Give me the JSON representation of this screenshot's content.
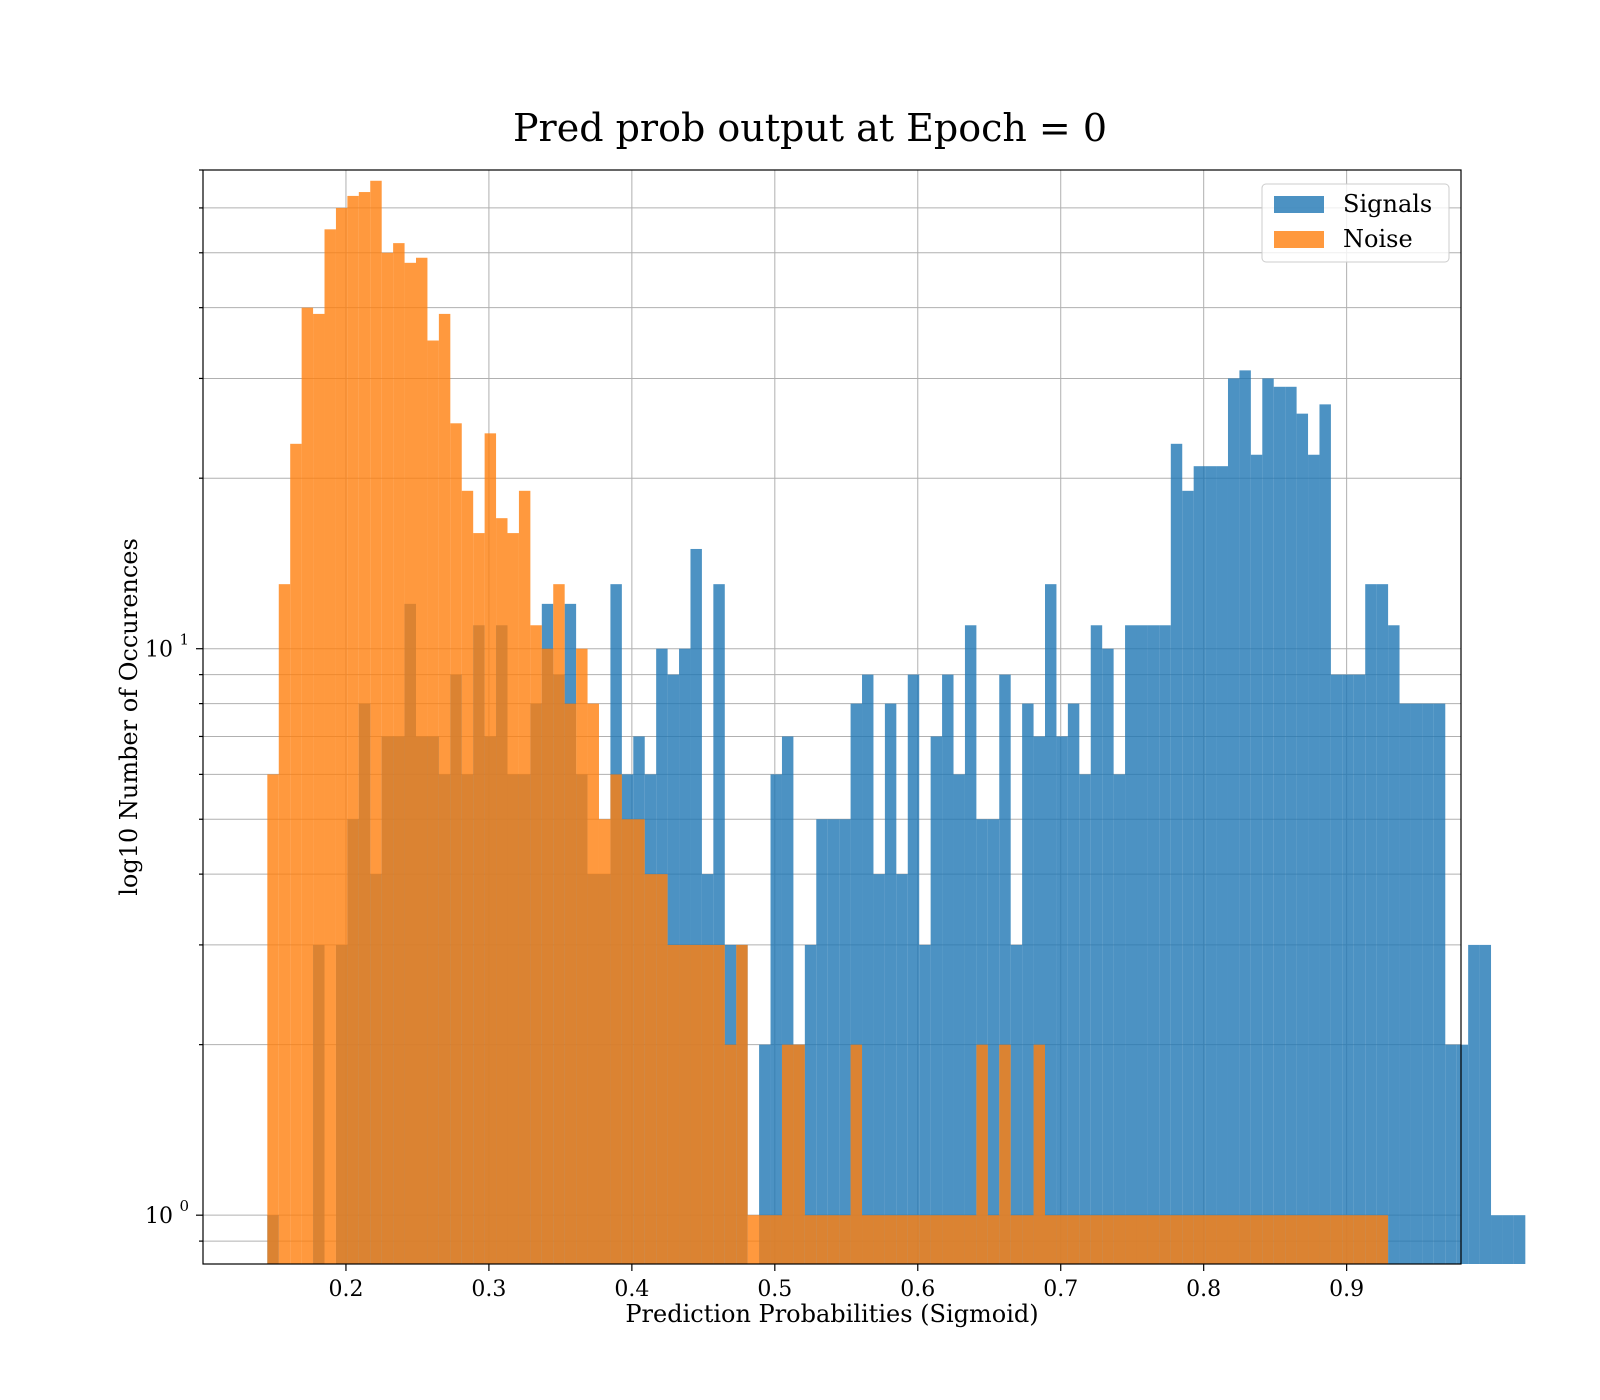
{
  "chart_data": {
    "type": "histogram",
    "title": "Pred prob output at Epoch = 0",
    "xlabel": "Prediction Probabilities (Sigmoid)",
    "ylabel": "log10 Number of Occurences",
    "yscale": "log",
    "xlim": [
      0.1,
      0.98
    ],
    "ylim": [
      0.82,
      70
    ],
    "xticks": [
      0.2,
      0.3,
      0.4,
      0.5,
      0.6,
      0.7,
      0.8,
      0.9
    ],
    "xtick_labels": [
      "0.2",
      "0.3",
      "0.4",
      "0.5",
      "0.6",
      "0.7",
      "0.8",
      "0.9"
    ],
    "yticks_major": [
      1,
      10
    ],
    "ytick_labels": [
      {
        "base": "10",
        "exp": "0"
      },
      {
        "base": "10",
        "exp": "1"
      }
    ],
    "grid": true,
    "legend_position": "top-right",
    "series": [
      {
        "name": "Signals",
        "color": "#1f77b4",
        "alpha": 0.8,
        "bin_start": 0.145,
        "bin_width": 0.008,
        "counts": [
          1,
          0,
          0,
          0,
          3,
          0,
          3,
          5,
          8,
          4,
          7,
          7,
          12,
          7,
          7,
          6,
          9,
          6,
          11,
          7,
          11,
          6,
          6,
          8,
          12,
          9,
          12,
          6,
          4,
          4,
          13,
          6,
          7,
          6,
          10,
          9,
          10,
          15,
          4,
          13,
          3,
          3,
          0,
          2,
          6,
          7,
          2,
          3,
          5,
          5,
          5,
          8,
          9,
          4,
          8,
          4,
          9,
          3,
          7,
          9,
          6,
          11,
          5,
          5,
          9,
          3,
          8,
          7,
          13,
          7,
          8,
          6,
          11,
          10,
          6,
          11,
          11,
          11,
          11,
          23,
          19,
          21,
          21,
          21,
          30,
          31,
          22,
          30,
          29,
          29,
          26,
          22,
          27,
          9,
          9,
          9,
          13,
          13,
          11,
          8,
          8,
          8,
          8,
          2,
          2,
          3,
          3,
          1,
          1,
          1
        ]
      },
      {
        "name": "Noise",
        "color": "#ff7f0e",
        "alpha": 0.8,
        "bin_start": 0.145,
        "bin_width": 0.008,
        "counts": [
          6,
          13,
          23,
          40,
          39,
          55,
          60,
          63,
          64,
          67,
          50,
          52,
          48,
          49,
          35,
          39,
          25,
          19,
          16,
          24,
          17,
          16,
          19,
          11,
          10,
          13,
          8,
          10,
          8,
          5,
          6,
          5,
          5,
          4,
          4,
          3,
          3,
          3,
          3,
          3,
          2,
          3,
          1,
          1,
          1,
          2,
          2,
          1,
          1,
          1,
          1,
          2,
          1,
          1,
          1,
          1,
          1,
          1,
          1,
          1,
          1,
          1,
          2,
          1,
          2,
          1,
          1,
          2,
          1,
          1,
          1,
          1,
          1,
          1,
          1,
          1,
          1,
          1,
          1,
          1,
          1,
          1,
          1,
          1,
          1,
          1,
          1,
          1,
          1,
          1,
          1,
          1,
          1,
          1,
          1,
          1,
          1,
          1,
          0,
          0,
          0,
          0,
          0,
          0,
          0,
          0,
          0,
          0,
          0,
          0
        ]
      }
    ]
  }
}
